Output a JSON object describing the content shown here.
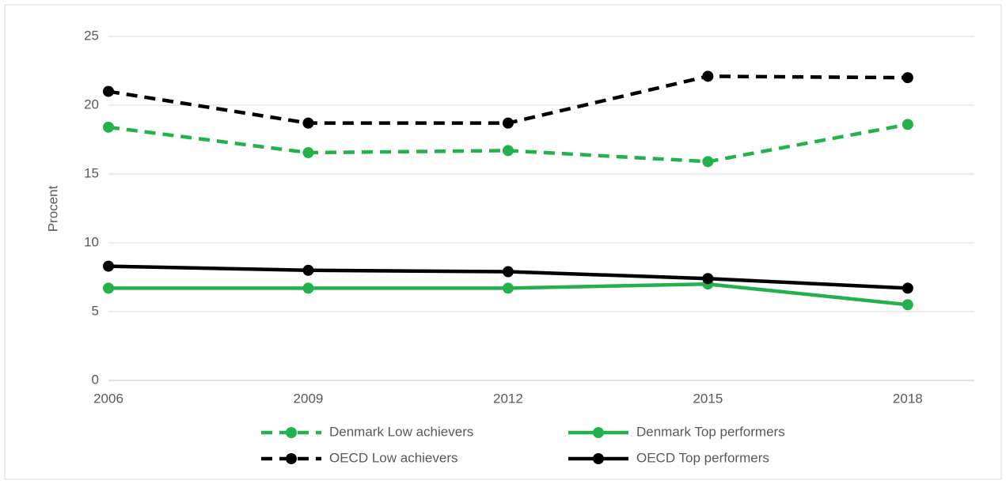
{
  "chart_data": {
    "type": "line",
    "ylabel": "Procent",
    "x": [
      2006,
      2009,
      2012,
      2015,
      2018
    ],
    "xlim": [
      2006,
      2019
    ],
    "xticks": [
      2006,
      2009,
      2012,
      2015,
      2018
    ],
    "ylim": [
      0,
      25
    ],
    "yticks": [
      0,
      5,
      10,
      15,
      20,
      25
    ],
    "grid": true,
    "legend": "bottom",
    "series": [
      {
        "name": "Denmark Low achievers",
        "color": "#22b14c",
        "style": "dashed",
        "values": [
          18.4,
          16.55,
          16.7,
          15.9,
          18.6
        ]
      },
      {
        "name": "Denmark Top performers",
        "color": "#22b14c",
        "style": "solid",
        "values": [
          6.7,
          6.7,
          6.7,
          7.0,
          5.5
        ]
      },
      {
        "name": "OECD Low achievers",
        "color": "#000000",
        "style": "dashed",
        "values": [
          21.0,
          18.7,
          18.7,
          22.1,
          22.0
        ]
      },
      {
        "name": "OECD Top performers",
        "color": "#000000",
        "style": "solid",
        "values": [
          8.3,
          8.0,
          7.9,
          7.4,
          6.7
        ]
      }
    ]
  }
}
